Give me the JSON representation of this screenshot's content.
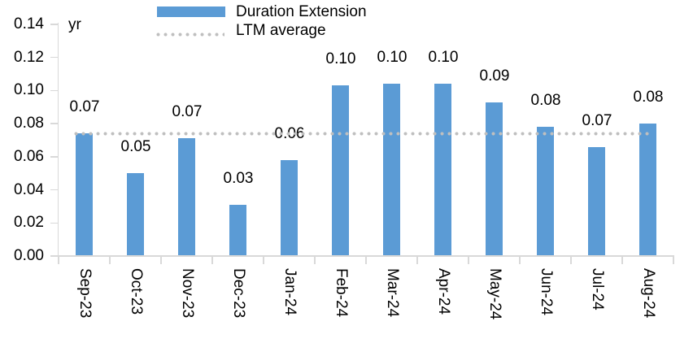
{
  "figure": {
    "unit_label": "yr",
    "background": "#FFFFFF"
  },
  "legend": {
    "position": "top",
    "entries": [
      {
        "label": "Duration Extension",
        "swatch": "bar",
        "color": "#5B9BD5"
      },
      {
        "label": "LTM average",
        "swatch": "dotted-line",
        "color": "#BFBFBF"
      }
    ]
  },
  "chart_data": {
    "type": "bar",
    "title": "",
    "xlabel": "",
    "ylabel": "yr",
    "categories": [
      "Sep-23",
      "Oct-23",
      "Nov-23",
      "Dec-23",
      "Jan-24",
      "Feb-24",
      "Mar-24",
      "Apr-24",
      "May-24",
      "Jun-24",
      "Jul-24",
      "Aug-24"
    ],
    "series": [
      {
        "name": "Duration Extension",
        "values": [
          0.07,
          0.05,
          0.07,
          0.03,
          0.06,
          0.1,
          0.1,
          0.1,
          0.09,
          0.08,
          0.07,
          0.08
        ],
        "color": "#5B9BD5"
      }
    ],
    "data_labels": [
      "0.07",
      "0.05",
      "0.07",
      "0.03",
      "0.06",
      "0.10",
      "0.10",
      "0.10",
      "0.09",
      "0.08",
      "0.07",
      "0.08"
    ],
    "precise_values": [
      0.074,
      0.05,
      0.071,
      0.031,
      0.058,
      0.103,
      0.104,
      0.104,
      0.093,
      0.078,
      0.066,
      0.08
    ],
    "reference_line": {
      "name": "LTM average",
      "value": 0.074,
      "style": "dotted",
      "color": "#BFBFBF"
    },
    "y_axis": {
      "min": 0.0,
      "max": 0.14,
      "step": 0.02,
      "tick_labels": [
        "0.00",
        "0.02",
        "0.04",
        "0.06",
        "0.08",
        "0.10",
        "0.12",
        "0.14"
      ]
    },
    "x_axis": {
      "label_rotation_deg": 90
    },
    "grid": false,
    "legend_position": "top",
    "colors": {
      "bar": "#5B9BD5",
      "axis": "#D9D9D9",
      "reference": "#BFBFBF",
      "text": "#000000",
      "background": "#FFFFFF"
    }
  }
}
